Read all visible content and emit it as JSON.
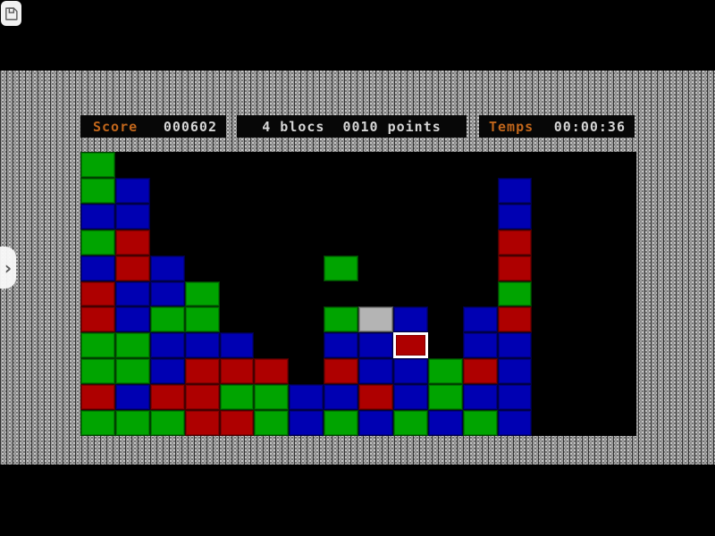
{
  "toolbar": {
    "save_icon": "floppy-disk-icon"
  },
  "side_tab": {
    "icon": "chevron-right-icon",
    "glyph": "›"
  },
  "status_bar": {
    "score_label": "Score",
    "score_value": "000602",
    "selection_blocks": "4 blocs",
    "selection_points": "0010 points",
    "time_label": "Temps",
    "time_value": "00:00:36"
  },
  "colors": {
    "label_orange": "#c1661b",
    "value_gray": "#d6d6d6",
    "panel_bg": "#070707",
    "board_bg": "#000000",
    "highlight_border": "#ffffff"
  },
  "board": {
    "cols": 16,
    "rows": 11,
    "palette": {
      "G": "#00a400",
      "B": "#0000b2",
      "R": "#ae0000",
      "S": "#b4b4b4"
    },
    "palette_names": {
      "G": "green",
      "B": "blue",
      "R": "red",
      "S": "silver"
    },
    "blocks": [
      {
        "c": 1,
        "r": 1,
        "k": "G"
      },
      {
        "c": 1,
        "r": 2,
        "k": "G"
      },
      {
        "c": 2,
        "r": 2,
        "k": "B"
      },
      {
        "c": 13,
        "r": 2,
        "k": "B"
      },
      {
        "c": 1,
        "r": 3,
        "k": "B"
      },
      {
        "c": 2,
        "r": 3,
        "k": "B"
      },
      {
        "c": 13,
        "r": 3,
        "k": "B"
      },
      {
        "c": 1,
        "r": 4,
        "k": "G"
      },
      {
        "c": 2,
        "r": 4,
        "k": "R"
      },
      {
        "c": 13,
        "r": 4,
        "k": "R"
      },
      {
        "c": 1,
        "r": 5,
        "k": "B"
      },
      {
        "c": 2,
        "r": 5,
        "k": "R"
      },
      {
        "c": 3,
        "r": 5,
        "k": "B"
      },
      {
        "c": 8,
        "r": 5,
        "k": "G"
      },
      {
        "c": 13,
        "r": 5,
        "k": "R"
      },
      {
        "c": 1,
        "r": 6,
        "k": "R"
      },
      {
        "c": 2,
        "r": 6,
        "k": "B"
      },
      {
        "c": 3,
        "r": 6,
        "k": "B"
      },
      {
        "c": 4,
        "r": 6,
        "k": "G"
      },
      {
        "c": 13,
        "r": 6,
        "k": "G"
      },
      {
        "c": 1,
        "r": 7,
        "k": "R"
      },
      {
        "c": 2,
        "r": 7,
        "k": "B"
      },
      {
        "c": 3,
        "r": 7,
        "k": "G"
      },
      {
        "c": 4,
        "r": 7,
        "k": "G"
      },
      {
        "c": 8,
        "r": 7,
        "k": "G"
      },
      {
        "c": 9,
        "r": 7,
        "k": "S"
      },
      {
        "c": 10,
        "r": 7,
        "k": "B"
      },
      {
        "c": 12,
        "r": 7,
        "k": "B"
      },
      {
        "c": 13,
        "r": 7,
        "k": "R"
      },
      {
        "c": 1,
        "r": 8,
        "k": "G"
      },
      {
        "c": 2,
        "r": 8,
        "k": "G"
      },
      {
        "c": 3,
        "r": 8,
        "k": "B"
      },
      {
        "c": 4,
        "r": 8,
        "k": "B"
      },
      {
        "c": 5,
        "r": 8,
        "k": "B"
      },
      {
        "c": 8,
        "r": 8,
        "k": "B"
      },
      {
        "c": 9,
        "r": 8,
        "k": "B"
      },
      {
        "c": 10,
        "r": 8,
        "k": "R",
        "h": true
      },
      {
        "c": 12,
        "r": 8,
        "k": "B"
      },
      {
        "c": 13,
        "r": 8,
        "k": "B"
      },
      {
        "c": 1,
        "r": 9,
        "k": "G"
      },
      {
        "c": 2,
        "r": 9,
        "k": "G"
      },
      {
        "c": 3,
        "r": 9,
        "k": "B"
      },
      {
        "c": 4,
        "r": 9,
        "k": "R"
      },
      {
        "c": 5,
        "r": 9,
        "k": "R"
      },
      {
        "c": 6,
        "r": 9,
        "k": "R"
      },
      {
        "c": 8,
        "r": 9,
        "k": "R"
      },
      {
        "c": 9,
        "r": 9,
        "k": "B"
      },
      {
        "c": 10,
        "r": 9,
        "k": "B"
      },
      {
        "c": 11,
        "r": 9,
        "k": "G"
      },
      {
        "c": 12,
        "r": 9,
        "k": "R"
      },
      {
        "c": 13,
        "r": 9,
        "k": "B"
      },
      {
        "c": 1,
        "r": 10,
        "k": "R"
      },
      {
        "c": 2,
        "r": 10,
        "k": "B"
      },
      {
        "c": 3,
        "r": 10,
        "k": "R"
      },
      {
        "c": 4,
        "r": 10,
        "k": "R"
      },
      {
        "c": 5,
        "r": 10,
        "k": "G"
      },
      {
        "c": 6,
        "r": 10,
        "k": "G"
      },
      {
        "c": 7,
        "r": 10,
        "k": "B"
      },
      {
        "c": 8,
        "r": 10,
        "k": "B"
      },
      {
        "c": 9,
        "r": 10,
        "k": "R"
      },
      {
        "c": 10,
        "r": 10,
        "k": "B"
      },
      {
        "c": 11,
        "r": 10,
        "k": "G"
      },
      {
        "c": 12,
        "r": 10,
        "k": "B"
      },
      {
        "c": 13,
        "r": 10,
        "k": "B"
      },
      {
        "c": 1,
        "r": 11,
        "k": "G"
      },
      {
        "c": 2,
        "r": 11,
        "k": "G"
      },
      {
        "c": 3,
        "r": 11,
        "k": "G"
      },
      {
        "c": 4,
        "r": 11,
        "k": "R"
      },
      {
        "c": 5,
        "r": 11,
        "k": "R"
      },
      {
        "c": 6,
        "r": 11,
        "k": "G"
      },
      {
        "c": 7,
        "r": 11,
        "k": "B"
      },
      {
        "c": 8,
        "r": 11,
        "k": "G"
      },
      {
        "c": 9,
        "r": 11,
        "k": "B"
      },
      {
        "c": 10,
        "r": 11,
        "k": "G"
      },
      {
        "c": 11,
        "r": 11,
        "k": "B"
      },
      {
        "c": 12,
        "r": 11,
        "k": "G"
      },
      {
        "c": 13,
        "r": 11,
        "k": "B"
      }
    ]
  }
}
